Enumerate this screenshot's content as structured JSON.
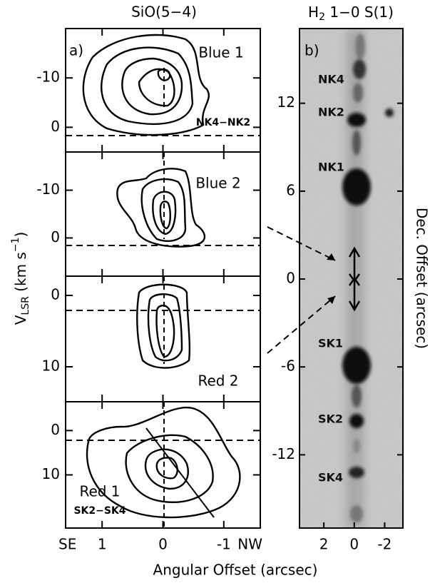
{
  "chart_data": [
    {
      "type": "contour",
      "title": "SiO(5−4)",
      "panel_label": "a)",
      "labels": [
        "Blue 1",
        "NK4−NK2"
      ],
      "ylim": [
        -20,
        5
      ],
      "yticks": [
        -10,
        0
      ]
    },
    {
      "type": "contour",
      "labels": [
        "Blue 2"
      ],
      "ylim": [
        -18,
        8
      ],
      "yticks": [
        -10,
        0
      ]
    },
    {
      "type": "contour",
      "labels": [
        "Red 2"
      ],
      "ylim": [
        -2.7,
        14.9
      ],
      "yticks": [
        0,
        10
      ]
    },
    {
      "type": "contour",
      "labels": [
        "Red 1",
        "SK2−SK4"
      ],
      "ylim": [
        -6.5,
        22
      ],
      "yticks": [
        0,
        10
      ],
      "xlim": [
        1.6,
        -1.6
      ],
      "xticks": [
        1,
        0,
        -1
      ],
      "x_end_labels": [
        "SE",
        "NW"
      ]
    },
    {
      "type": "image",
      "title": {
        "base": "H",
        "sub": "2",
        "rest": " 1−0 S(1)"
      },
      "panel_label": "b)",
      "knot_labels": [
        "NK4",
        "NK2",
        "NK1",
        "SK1",
        "SK2",
        "SK4"
      ],
      "xlim": [
        3.6,
        -3.2
      ],
      "xticks": [
        2,
        0,
        -2
      ],
      "ylim": [
        17.1,
        -17
      ],
      "yticks": [
        12,
        6,
        0,
        -6,
        -12
      ],
      "ylabel": "Dec. Offset (arcsec)"
    }
  ],
  "ylabel": {
    "base": "V",
    "sub": "LSR",
    "unit": " (km s",
    "sup": "−1",
    "close": ")"
  },
  "xlabel": "Angular Offset (arcsec)"
}
